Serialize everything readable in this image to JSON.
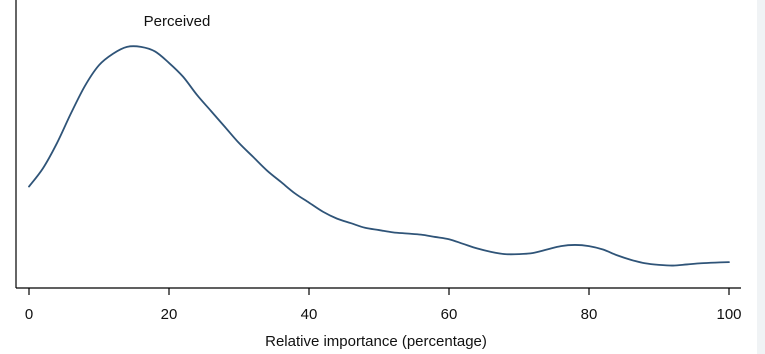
{
  "colors": {
    "background": "#ffffff",
    "side_strip": "#f0f3f5",
    "axis": "#000000",
    "series": "#2f5478"
  },
  "chart_data": {
    "type": "line",
    "xlabel": "Relative importance (percentage)",
    "ylabel": "",
    "xlim": [
      0,
      100
    ],
    "ylim": [
      0,
      1
    ],
    "x_ticks": [
      0,
      20,
      40,
      60,
      80,
      100
    ],
    "x_tick_labels": [
      "0",
      "20",
      "40",
      "60",
      "80",
      "100"
    ],
    "grid": false,
    "series": [
      {
        "name": "Perceived",
        "x": [
          0,
          2,
          4,
          6,
          8,
          10,
          12,
          14,
          16,
          18,
          20,
          22,
          24,
          26,
          28,
          30,
          32,
          34,
          36,
          38,
          40,
          42,
          44,
          46,
          48,
          50,
          52,
          54,
          56,
          58,
          60,
          62,
          64,
          66,
          68,
          70,
          72,
          74,
          76,
          78,
          80,
          82,
          84,
          86,
          88,
          90,
          92,
          94,
          96,
          98,
          100
        ],
        "values": [
          0.36,
          0.44,
          0.55,
          0.68,
          0.8,
          0.89,
          0.94,
          0.97,
          0.97,
          0.95,
          0.9,
          0.84,
          0.76,
          0.69,
          0.62,
          0.55,
          0.49,
          0.43,
          0.38,
          0.33,
          0.29,
          0.25,
          0.22,
          0.2,
          0.18,
          0.17,
          0.16,
          0.155,
          0.15,
          0.14,
          0.13,
          0.11,
          0.09,
          0.075,
          0.065,
          0.065,
          0.07,
          0.085,
          0.1,
          0.105,
          0.1,
          0.085,
          0.06,
          0.04,
          0.025,
          0.018,
          0.015,
          0.02,
          0.025,
          0.028,
          0.03
        ]
      }
    ]
  }
}
